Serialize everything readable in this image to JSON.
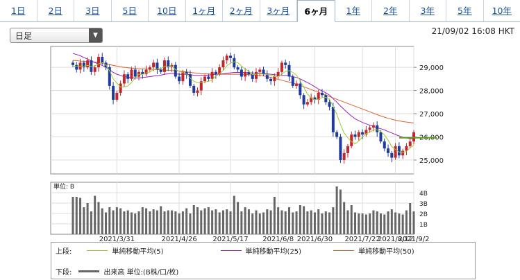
{
  "tabs": [
    {
      "label": "1日",
      "active": false
    },
    {
      "label": "2日",
      "active": false
    },
    {
      "label": "3日",
      "active": false
    },
    {
      "label": "5日",
      "active": false
    },
    {
      "label": "10日",
      "active": false
    },
    {
      "label": "1ヶ月",
      "active": false
    },
    {
      "label": "2ヶ月",
      "active": false
    },
    {
      "label": "3ヶ月",
      "active": false
    },
    {
      "label": "6ヶ月",
      "active": true
    },
    {
      "label": "1年",
      "active": false
    },
    {
      "label": "2年",
      "active": false
    },
    {
      "label": "3年",
      "active": false
    },
    {
      "label": "5年",
      "active": false
    },
    {
      "label": "10年",
      "active": false
    }
  ],
  "period_select": {
    "value": "日足"
  },
  "timestamp": "21/09/02 16:08 HKT",
  "legend": {
    "upper_label": "上段:",
    "lower_label": "下段:",
    "items": [
      {
        "label": "単純移動平均(5)",
        "color": "#9acd32"
      },
      {
        "label": "単純移動平均(25)",
        "color": "#a020c0"
      },
      {
        "label": "単純移動平均(50)",
        "color": "#e0602a"
      }
    ],
    "volume_label": "出来高 単位:(B株/口/枚)",
    "volume_color": "#666666"
  },
  "chart_data": {
    "type": "candlestick",
    "ylim": [
      24400,
      29900
    ],
    "yticks": [
      "29,000",
      "28,000",
      "27,000",
      "26,000",
      "25,000"
    ],
    "ytick_values": [
      29000,
      28000,
      27000,
      26000,
      25000
    ],
    "xticks": [
      "2021/3/31",
      "2021/4/26",
      "2021/5/17",
      "2021/6/8",
      "2021/6/30",
      "2021/7/22",
      "2021/8/12",
      "2021/9/2"
    ],
    "current_line": 25960,
    "up_color": "#c0282d",
    "down_color": "#1f3b9c",
    "closes": [
      29100,
      28900,
      29200,
      29000,
      29300,
      28800,
      29000,
      29450,
      29200,
      29000,
      28200,
      27600,
      27900,
      28300,
      28700,
      28500,
      28900,
      28600,
      28800,
      28700,
      28900,
      29000,
      29200,
      28900,
      28800,
      29300,
      29000,
      29100,
      28600,
      28400,
      28800,
      28700,
      28200,
      27900,
      28000,
      28400,
      28600,
      28500,
      28800,
      28700,
      29000,
      29300,
      29500,
      29400,
      29000,
      28900,
      28600,
      28800,
      28700,
      28500,
      28800,
      28900,
      28700,
      28500,
      28400,
      28600,
      28800,
      29200,
      29100,
      28600,
      28200,
      28300,
      27800,
      27400,
      27500,
      27700,
      27600,
      27900,
      27800,
      27500,
      27300,
      26200,
      26000,
      25000,
      25300,
      25600,
      26100,
      26000,
      26200,
      26100,
      26300,
      26400,
      26500,
      26200,
      25800,
      25500,
      25300,
      25100,
      25600,
      25200,
      25400,
      25600,
      25800,
      26200
    ],
    "ma5": [
      29050,
      29050,
      29050,
      29050,
      29080,
      29040,
      29060,
      29150,
      29200,
      29120,
      28850,
      28500,
      28320,
      28150,
      28150,
      28200,
      28350,
      28550,
      28700,
      28690,
      28760,
      28800,
      28900,
      28930,
      28950,
      29030,
      29040,
      29050,
      28900,
      28830,
      28770,
      28720,
      28530,
      28400,
      28330,
      28350,
      28380,
      28390,
      28460,
      28620,
      28720,
      28860,
      29060,
      29180,
      29240,
      29200,
      29050,
      28930,
      28830,
      28690,
      28700,
      28720,
      28700,
      28680,
      28660,
      28600,
      28600,
      28700,
      28820,
      28860,
      28780,
      28660,
      28420,
      28140,
      27840,
      27680,
      27600,
      27620,
      27700,
      27700,
      27620,
      27320,
      26980,
      26540,
      26160,
      25960,
      25800,
      25700,
      25820,
      26000,
      26140,
      26200,
      26300,
      26300,
      26240,
      26080,
      25860,
      25580,
      25460,
      25340,
      25320,
      25380,
      25520,
      25640
    ],
    "ma25": [
      29600,
      29550,
      29500,
      29420,
      29360,
      29280,
      29200,
      29150,
      29080,
      29000,
      28900,
      28780,
      28700,
      28650,
      28600,
      28580,
      28550,
      28540,
      28540,
      28560,
      28580,
      28600,
      28620,
      28640,
      28660,
      28700,
      28720,
      28740,
      28720,
      28700,
      28700,
      28700,
      28680,
      28660,
      28650,
      28650,
      28660,
      28660,
      28680,
      28700,
      28700,
      28720,
      28740,
      28760,
      28780,
      28780,
      28780,
      28770,
      28760,
      28760,
      28740,
      28740,
      28720,
      28720,
      28700,
      28680,
      28660,
      28650,
      28650,
      28630,
      28600,
      28560,
      28500,
      28420,
      28340,
      28260,
      28160,
      28060,
      27980,
      27900,
      27800,
      27650,
      27500,
      27330,
      27180,
      27030,
      26900,
      26780,
      26700,
      26620,
      26560,
      26500,
      26450,
      26400,
      26350,
      26300,
      26230,
      26170,
      26100,
      26040,
      25980,
      25950,
      25920,
      25920
    ],
    "ma50": [
      29300,
      29290,
      29270,
      29260,
      29250,
      29240,
      29220,
      29200,
      29170,
      29150,
      29120,
      29080,
      29050,
      29020,
      29000,
      28980,
      28960,
      28950,
      28940,
      28930,
      28930,
      28920,
      28910,
      28900,
      28890,
      28880,
      28870,
      28860,
      28850,
      28840,
      28820,
      28800,
      28780,
      28760,
      28740,
      28720,
      28720,
      28710,
      28700,
      28700,
      28700,
      28700,
      28700,
      28700,
      28700,
      28700,
      28700,
      28690,
      28680,
      28670,
      28660,
      28650,
      28630,
      28600,
      28560,
      28520,
      28480,
      28440,
      28400,
      28360,
      28320,
      28270,
      28220,
      28160,
      28100,
      28040,
      27980,
      27920,
      27860,
      27800,
      27740,
      27680,
      27620,
      27560,
      27500,
      27440,
      27380,
      27320,
      27260,
      27200,
      27140,
      27080,
      27020,
      26960,
      26900,
      26850,
      26800,
      26760,
      26720,
      26690,
      26660,
      26640,
      26620,
      26600
    ],
    "volume": {
      "yticks": [
        "4B",
        "3B",
        "2B",
        "1B"
      ],
      "ytick_values": [
        4,
        3,
        2,
        1
      ],
      "ylim": [
        0,
        5
      ],
      "unit_label": "単位: B",
      "values": [
        3.6,
        3.6,
        3.5,
        2.6,
        3.0,
        2.2,
        3.7,
        3.1,
        2.5,
        2.1,
        2.6,
        2.3,
        2.6,
        2.5,
        2.2,
        2.3,
        2.1,
        2.0,
        2.2,
        2.6,
        2.5,
        2.2,
        2.4,
        2.3,
        2.7,
        2.2,
        2.3,
        2.3,
        2.2,
        2.0,
        2.2,
        2.5,
        2.0,
        2.8,
        2.6,
        2.3,
        2.5,
        2.6,
        2.3,
        2.4,
        2.1,
        2.3,
        2.4,
        2.2,
        3.7,
        3.1,
        2.2,
        2.6,
        2.4,
        2.0,
        2.3,
        2.0,
        2.1,
        2.4,
        2.3,
        3.6,
        2.6,
        2.3,
        2.2,
        2.6,
        2.1,
        2.2,
        2.8,
        2.7,
        2.2,
        2.3,
        2.1,
        2.4,
        2.0,
        2.2,
        2.1,
        2.6,
        4.6,
        4.3,
        3.1,
        2.3,
        2.8,
        2.1,
        2.0,
        2.0,
        1.9,
        2.0,
        2.3,
        2.2,
        2.0,
        1.9,
        2.2,
        2.4,
        2.1,
        2.0,
        1.9,
        2.3,
        3.0,
        2.2
      ]
    }
  }
}
